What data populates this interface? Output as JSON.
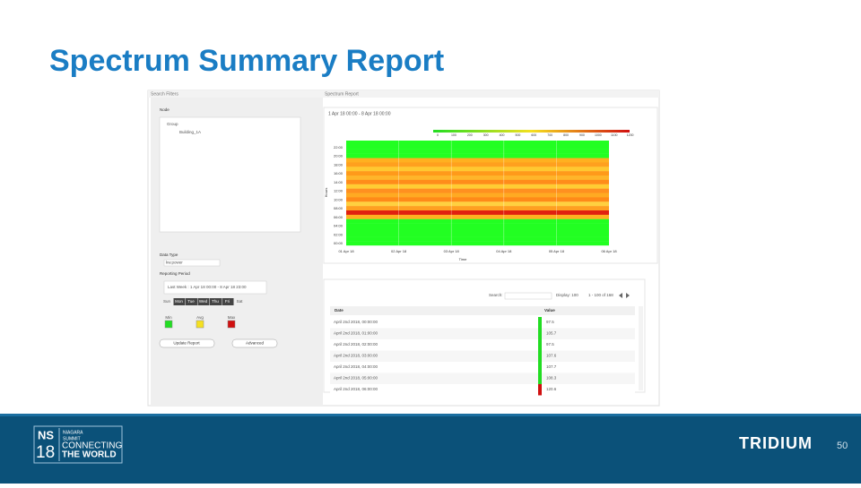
{
  "title": "Spectrum Summary Report",
  "slide_number": "50",
  "footer": {
    "event_code": "NS",
    "year": "18",
    "event_name": [
      "NIAGARA",
      "SUMMIT"
    ],
    "tagline": [
      "CONNECTING",
      "THE WORLD"
    ],
    "brand": "TRIDIUM"
  },
  "screenshot": {
    "left_panel": {
      "header": "Search Filters",
      "node_label": "Node",
      "tree": [
        "Group",
        "Building_1A"
      ],
      "data_type_label": "Data Type",
      "data_type_value": "kw.power",
      "period_label": "Reporting Period",
      "period_value": "Last Week : 1 Apr 18 00:00 - 8 Apr 18 23:00",
      "days": [
        {
          "label": "Sun",
          "selected": false
        },
        {
          "label": "Mon",
          "selected": true
        },
        {
          "label": "Tue",
          "selected": true
        },
        {
          "label": "Wed",
          "selected": true
        },
        {
          "label": "Thu",
          "selected": true
        },
        {
          "label": "Fri",
          "selected": true
        },
        {
          "label": "Sat",
          "selected": false
        }
      ],
      "legend": [
        {
          "label": "Min",
          "color": "#22dd22"
        },
        {
          "label": "Avg",
          "color": "#f5e020"
        },
        {
          "label": "Max",
          "color": "#d01010"
        }
      ],
      "buttons": [
        "Update Report",
        "Advanced"
      ]
    },
    "report": {
      "header": "Spectrum Report",
      "range": "1 Apr 18 00:00 - 8 Apr 18 00:00",
      "scale_labels": [
        "0",
        "100",
        "200",
        "300",
        "400",
        "500",
        "600",
        "700",
        "800",
        "900",
        "1000",
        "1100",
        "1200"
      ],
      "y_title": "Hours",
      "y_labels": [
        "22:00",
        "20:00",
        "18:00",
        "16:00",
        "14:00",
        "12:00",
        "10:00",
        "08:00",
        "06:00",
        "04:00",
        "02:00",
        "00:00"
      ],
      "x_title": "Time",
      "x_labels": [
        "01 Apr 18",
        "02 Apr 18",
        "03 Apr 18",
        "04 Apr 18",
        "05 Apr 18",
        "06 Apr 18"
      ],
      "rows": [
        "#22ff22",
        "#22ff22",
        "#22ff22",
        "#22ff22",
        "#ffb020",
        "#ffa01e",
        "#ffc830",
        "#ff9a1a",
        "#ffb52a",
        "#ff8c1a",
        "#ffcc33",
        "#ff9020",
        "#ffaa22",
        "#ff8a18",
        "#ffd040",
        "#ffa020",
        "#e02010",
        "#ffb020",
        "#22ff22",
        "#22ff22",
        "#22ff22",
        "#22ff22",
        "#22ff22",
        "#22ff22"
      ]
    },
    "table": {
      "search_label": "Search:",
      "display": "Display: 100",
      "paging": "1 - 100 of 168",
      "columns": [
        "Date",
        "Value"
      ],
      "rows": [
        [
          "April 2nd 2018, 00:00:00",
          "97.5"
        ],
        [
          "April 2nd 2018, 01:00:00",
          "105.7"
        ],
        [
          "April 2nd 2018, 02:00:00",
          "97.5"
        ],
        [
          "April 2nd 2018, 03:00:00",
          "107.6"
        ],
        [
          "April 2nd 2018, 04:00:00",
          "107.7"
        ],
        [
          "April 2nd 2018, 05:00:00",
          "108.3"
        ],
        [
          "April 2nd 2018, 06:00:00",
          "120.6"
        ]
      ],
      "row_colors": [
        "#22dd22",
        "#22dd22",
        "#22dd22",
        "#22dd22",
        "#22dd22",
        "#22dd22",
        "#d01010"
      ]
    }
  }
}
